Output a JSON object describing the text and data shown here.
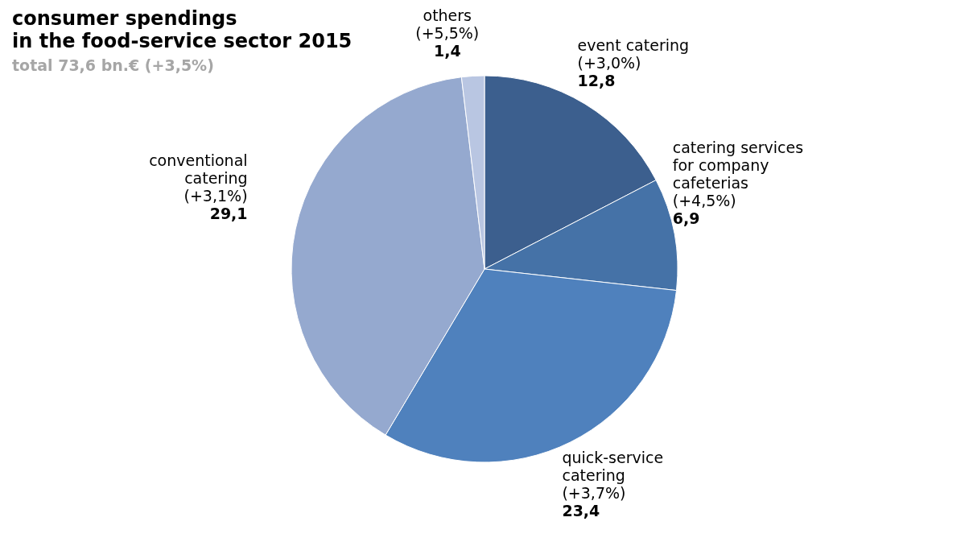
{
  "chart_data": {
    "type": "pie",
    "title": "consumer spendings\nin the food-service sector 2015",
    "subtitle": "total 73,6 bn.€ (+3,5%)",
    "categories": [
      "event catering\n(+3,0%)",
      "catering services\nfor company\ncafeterias\n(+4,5%)",
      "quick-service\ncatering\n(+3,7%)",
      "conventional\ncatering\n(+3,1%)",
      "others\n(+5,5%)"
    ],
    "values": [
      12.8,
      6.9,
      23.4,
      29.1,
      1.4
    ],
    "value_labels": [
      "12,8",
      "6,9",
      "23,4",
      "29,1",
      "1,4"
    ],
    "colors": [
      "#3c5f8e",
      "#4572a7",
      "#4f81bd",
      "#95a9cf",
      "#b9c6e2"
    ],
    "legend": false
  }
}
